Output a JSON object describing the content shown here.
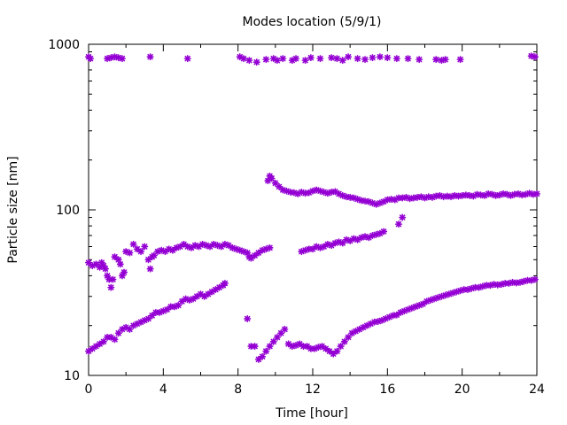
{
  "chart_data": {
    "type": "scatter",
    "title": "Modes location (5/9/1)",
    "xlabel": "Time [hour]",
    "ylabel": "Particle size [nm]",
    "xlim": [
      0,
      24
    ],
    "ylim": [
      10,
      1000
    ],
    "yscale": "log",
    "grid": false,
    "legend": "none",
    "x_ticks": [
      "0",
      "4",
      "8",
      "12",
      "16",
      "20",
      "24"
    ],
    "y_ticks": [
      "10",
      "100",
      "1000"
    ],
    "marker": "asterisk",
    "color": "#9400d3",
    "series": [
      {
        "points": [
          [
            0.0,
            840
          ],
          [
            0.1,
            820
          ],
          [
            1.0,
            820
          ],
          [
            1.2,
            830
          ],
          [
            1.4,
            840
          ],
          [
            1.6,
            830
          ],
          [
            1.8,
            820
          ],
          [
            3.3,
            840
          ],
          [
            5.3,
            820
          ],
          [
            8.1,
            840
          ],
          [
            8.3,
            820
          ],
          [
            8.6,
            800
          ],
          [
            9.0,
            780
          ],
          [
            9.5,
            810
          ],
          [
            9.9,
            820
          ],
          [
            10.1,
            800
          ],
          [
            10.4,
            820
          ],
          [
            10.9,
            800
          ],
          [
            11.1,
            820
          ],
          [
            11.6,
            800
          ],
          [
            11.9,
            830
          ],
          [
            12.4,
            820
          ],
          [
            13.0,
            830
          ],
          [
            13.3,
            820
          ],
          [
            13.6,
            800
          ],
          [
            13.9,
            840
          ],
          [
            14.4,
            820
          ],
          [
            14.8,
            810
          ],
          [
            15.2,
            830
          ],
          [
            15.6,
            840
          ],
          [
            16.0,
            830
          ],
          [
            16.5,
            820
          ],
          [
            17.1,
            820
          ],
          [
            17.7,
            810
          ],
          [
            18.6,
            810
          ],
          [
            18.9,
            800
          ],
          [
            19.1,
            810
          ],
          [
            19.9,
            810
          ],
          [
            23.7,
            850
          ],
          [
            23.9,
            840
          ]
        ]
      },
      {
        "points": [
          [
            0.0,
            48
          ],
          [
            0.2,
            46
          ],
          [
            0.4,
            47
          ],
          [
            0.6,
            45
          ],
          [
            0.7,
            48
          ],
          [
            0.8,
            46
          ],
          [
            0.9,
            44
          ],
          [
            1.0,
            40
          ],
          [
            1.1,
            38
          ],
          [
            1.2,
            34
          ],
          [
            1.3,
            38
          ],
          [
            1.4,
            52
          ],
          [
            1.6,
            50
          ],
          [
            1.7,
            47
          ],
          [
            1.8,
            40
          ],
          [
            1.9,
            42
          ],
          [
            2.0,
            56
          ],
          [
            2.2,
            55
          ],
          [
            2.4,
            62
          ],
          [
            2.6,
            58
          ],
          [
            2.8,
            56
          ],
          [
            3.0,
            60
          ],
          [
            3.2,
            50
          ],
          [
            3.3,
            44
          ],
          [
            3.4,
            52
          ],
          [
            3.5,
            53
          ],
          [
            3.7,
            56
          ],
          [
            3.9,
            57
          ],
          [
            4.1,
            56
          ],
          [
            4.3,
            58
          ],
          [
            4.5,
            57
          ],
          [
            4.7,
            59
          ],
          [
            4.9,
            60
          ],
          [
            5.1,
            62
          ],
          [
            5.3,
            60
          ],
          [
            5.5,
            59
          ],
          [
            5.7,
            61
          ],
          [
            5.9,
            60
          ],
          [
            6.1,
            62
          ],
          [
            6.3,
            61
          ],
          [
            6.5,
            60
          ],
          [
            6.7,
            62
          ],
          [
            6.9,
            61
          ],
          [
            7.1,
            60
          ],
          [
            7.3,
            62
          ],
          [
            7.5,
            61
          ],
          [
            7.7,
            59
          ],
          [
            7.9,
            58
          ],
          [
            8.1,
            57
          ],
          [
            8.3,
            56
          ],
          [
            8.5,
            55
          ],
          [
            8.6,
            52
          ],
          [
            8.7,
            51
          ],
          [
            8.9,
            53
          ],
          [
            9.1,
            55
          ],
          [
            9.3,
            57
          ],
          [
            9.5,
            58
          ],
          [
            9.7,
            59
          ]
        ]
      },
      {
        "points": [
          [
            9.6,
            150
          ],
          [
            9.7,
            160
          ],
          [
            9.8,
            155
          ],
          [
            10.0,
            145
          ],
          [
            10.2,
            138
          ],
          [
            10.4,
            132
          ],
          [
            10.6,
            130
          ],
          [
            10.8,
            128
          ],
          [
            11.0,
            127
          ],
          [
            11.2,
            125
          ],
          [
            11.4,
            128
          ],
          [
            11.6,
            126
          ],
          [
            11.8,
            127
          ],
          [
            12.0,
            130
          ],
          [
            12.2,
            132
          ],
          [
            12.4,
            130
          ],
          [
            12.6,
            128
          ],
          [
            12.8,
            126
          ],
          [
            13.0,
            128
          ],
          [
            13.2,
            129
          ],
          [
            13.4,
            125
          ],
          [
            13.6,
            122
          ],
          [
            13.8,
            120
          ],
          [
            14.0,
            119
          ],
          [
            14.2,
            118
          ],
          [
            14.4,
            116
          ],
          [
            14.6,
            114
          ],
          [
            14.8,
            113
          ],
          [
            15.0,
            112
          ],
          [
            15.2,
            110
          ],
          [
            15.4,
            108
          ],
          [
            15.6,
            110
          ],
          [
            15.8,
            112
          ],
          [
            16.0,
            115
          ],
          [
            16.2,
            116
          ],
          [
            16.4,
            115
          ],
          [
            16.6,
            118
          ],
          [
            16.8,
            118
          ],
          [
            17.0,
            119
          ],
          [
            17.2,
            117
          ],
          [
            17.4,
            118
          ],
          [
            17.6,
            119
          ],
          [
            17.8,
            120
          ],
          [
            18.0,
            118
          ],
          [
            18.2,
            120
          ],
          [
            18.4,
            119
          ],
          [
            18.6,
            121
          ],
          [
            18.8,
            122
          ],
          [
            19.0,
            120
          ],
          [
            19.2,
            121
          ],
          [
            19.4,
            120
          ],
          [
            19.6,
            122
          ],
          [
            19.8,
            121
          ],
          [
            20.0,
            122
          ],
          [
            20.2,
            123
          ],
          [
            20.4,
            122
          ],
          [
            20.6,
            121
          ],
          [
            20.8,
            124
          ],
          [
            21.0,
            123
          ],
          [
            21.2,
            122
          ],
          [
            21.4,
            125
          ],
          [
            21.6,
            124
          ],
          [
            21.8,
            122
          ],
          [
            22.0,
            123
          ],
          [
            22.2,
            125
          ],
          [
            22.4,
            124
          ],
          [
            22.6,
            122
          ],
          [
            22.8,
            124
          ],
          [
            23.0,
            125
          ],
          [
            23.2,
            123
          ],
          [
            23.4,
            124
          ],
          [
            23.6,
            126
          ],
          [
            23.8,
            124
          ],
          [
            24.0,
            125
          ]
        ]
      },
      {
        "points": [
          [
            11.4,
            56
          ],
          [
            11.6,
            57
          ],
          [
            11.8,
            58
          ],
          [
            12.0,
            58
          ],
          [
            12.2,
            60
          ],
          [
            12.4,
            59
          ],
          [
            12.6,
            60
          ],
          [
            12.8,
            62
          ],
          [
            13.0,
            61
          ],
          [
            13.2,
            63
          ],
          [
            13.4,
            64
          ],
          [
            13.6,
            63
          ],
          [
            13.8,
            66
          ],
          [
            14.0,
            65
          ],
          [
            14.2,
            67
          ],
          [
            14.4,
            66
          ],
          [
            14.6,
            68
          ],
          [
            14.8,
            69
          ],
          [
            15.0,
            68
          ],
          [
            15.2,
            70
          ],
          [
            15.4,
            71
          ],
          [
            15.6,
            72
          ],
          [
            15.8,
            74
          ],
          [
            16.6,
            82
          ],
          [
            16.8,
            90
          ]
        ]
      },
      {
        "points": [
          [
            0.0,
            14
          ],
          [
            0.2,
            14.5
          ],
          [
            0.4,
            15
          ],
          [
            0.6,
            15.5
          ],
          [
            0.8,
            16
          ],
          [
            1.0,
            17
          ],
          [
            1.2,
            17
          ],
          [
            1.4,
            16.5
          ],
          [
            1.6,
            18
          ],
          [
            1.8,
            19
          ],
          [
            2.0,
            19.5
          ],
          [
            2.2,
            19
          ],
          [
            2.4,
            20
          ],
          [
            2.6,
            20.5
          ],
          [
            2.8,
            21
          ],
          [
            3.0,
            21.5
          ],
          [
            3.2,
            22
          ],
          [
            3.4,
            23
          ],
          [
            3.6,
            24
          ],
          [
            3.8,
            24
          ],
          [
            4.0,
            24.5
          ],
          [
            4.2,
            25
          ],
          [
            4.4,
            26
          ],
          [
            4.6,
            26
          ],
          [
            4.8,
            26.5
          ],
          [
            5.0,
            28
          ],
          [
            5.2,
            29
          ],
          [
            5.4,
            28.5
          ],
          [
            5.6,
            29
          ],
          [
            5.8,
            30
          ],
          [
            6.0,
            31
          ],
          [
            6.2,
            30
          ],
          [
            6.4,
            31
          ],
          [
            6.6,
            32
          ],
          [
            6.8,
            33
          ],
          [
            7.0,
            34
          ],
          [
            7.2,
            35
          ],
          [
            7.3,
            36
          ],
          [
            8.5,
            22
          ],
          [
            8.7,
            15
          ],
          [
            8.9,
            15
          ],
          [
            9.1,
            12.5
          ],
          [
            9.3,
            13
          ],
          [
            9.5,
            14
          ],
          [
            9.7,
            15
          ],
          [
            9.9,
            16
          ],
          [
            10.1,
            17
          ],
          [
            10.3,
            18
          ],
          [
            10.5,
            19
          ],
          [
            10.7,
            15.5
          ],
          [
            10.9,
            15
          ],
          [
            11.1,
            15.2
          ],
          [
            11.3,
            15.5
          ],
          [
            11.5,
            15
          ],
          [
            11.7,
            15
          ],
          [
            11.9,
            14.5
          ],
          [
            12.1,
            14.5
          ],
          [
            12.3,
            14.8
          ],
          [
            12.5,
            15
          ],
          [
            12.7,
            14.5
          ],
          [
            12.9,
            14
          ],
          [
            13.1,
            13.5
          ],
          [
            13.3,
            14
          ],
          [
            13.5,
            15
          ],
          [
            13.7,
            16
          ],
          [
            13.9,
            17
          ],
          [
            14.1,
            18
          ],
          [
            14.3,
            18.5
          ],
          [
            14.5,
            19
          ],
          [
            14.7,
            19.5
          ],
          [
            14.9,
            20
          ],
          [
            15.1,
            20.5
          ],
          [
            15.3,
            21
          ],
          [
            15.5,
            21.2
          ],
          [
            15.7,
            21.5
          ],
          [
            15.9,
            22
          ],
          [
            16.1,
            22.5
          ],
          [
            16.3,
            23
          ],
          [
            16.5,
            23.2
          ],
          [
            16.7,
            24
          ],
          [
            16.9,
            24.5
          ],
          [
            17.1,
            25
          ],
          [
            17.3,
            25.5
          ],
          [
            17.5,
            26
          ],
          [
            17.7,
            26.5
          ],
          [
            17.9,
            27
          ],
          [
            18.1,
            28
          ],
          [
            18.3,
            28.5
          ],
          [
            18.5,
            29
          ],
          [
            18.7,
            29.5
          ],
          [
            18.9,
            30
          ],
          [
            19.1,
            30.5
          ],
          [
            19.3,
            31
          ],
          [
            19.5,
            31.5
          ],
          [
            19.7,
            32
          ],
          [
            19.9,
            32.5
          ],
          [
            20.1,
            33
          ],
          [
            20.3,
            33
          ],
          [
            20.5,
            33.5
          ],
          [
            20.7,
            34
          ],
          [
            20.9,
            34
          ],
          [
            21.1,
            34.5
          ],
          [
            21.3,
            35
          ],
          [
            21.5,
            35
          ],
          [
            21.7,
            35.5
          ],
          [
            21.9,
            35.2
          ],
          [
            22.1,
            35.5
          ],
          [
            22.3,
            36
          ],
          [
            22.5,
            36
          ],
          [
            22.7,
            36.5
          ],
          [
            22.9,
            36.2
          ],
          [
            23.1,
            36.5
          ],
          [
            23.3,
            37
          ],
          [
            23.5,
            37.5
          ],
          [
            23.7,
            37.5
          ],
          [
            23.9,
            38
          ]
        ]
      }
    ]
  }
}
